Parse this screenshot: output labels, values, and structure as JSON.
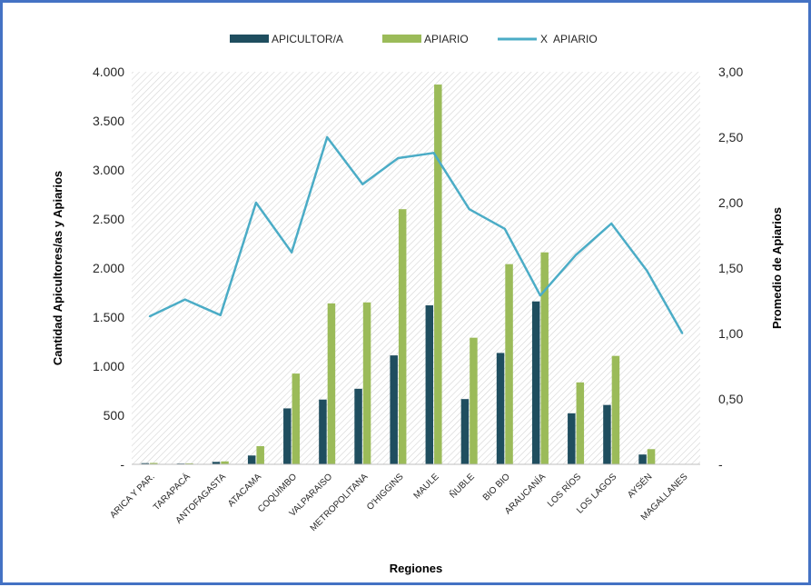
{
  "chart_data": {
    "type": "bar",
    "title": "",
    "xlabel": "Regiones",
    "ylabel": "Cantidad Apicultores/as y Apiarios",
    "y2label": "Promedio de Apiarios",
    "ylim": [
      0,
      4000
    ],
    "y2lim": [
      0,
      3
    ],
    "y_ticks": [
      "-",
      "500",
      "1.000",
      "1.500",
      "2.000",
      "2.500",
      "3.000",
      "3.500",
      "4.000"
    ],
    "y2_ticks": [
      "-",
      "0,50",
      "1,00",
      "1,50",
      "2,00",
      "2,50",
      "3,00"
    ],
    "grid": "hatched",
    "legend_position": "top",
    "categories": [
      "ARICA Y PAR.",
      "TARAPACÁ",
      "ANTOFAGASTA",
      "ATACAMA",
      "COQUIMBO",
      "VALPARAISO",
      "METROPOLITANA",
      "O'HIGGINS",
      "MAULE",
      "ÑUBLE",
      "BIO BIO",
      "ARAUCANÍA",
      "LOS RÍOS",
      "LOS LAGOS",
      "AYSÉN",
      "MAGALLANES"
    ],
    "series": [
      {
        "name": "APICULTOR/A",
        "type": "bar",
        "axis": "left",
        "color": "#1F4E5F",
        "values": [
          12,
          8,
          25,
          90,
          570,
          660,
          770,
          1110,
          1620,
          665,
          1135,
          1660,
          520,
          605,
          100,
          4
        ]
      },
      {
        "name": "APIARIO",
        "type": "bar",
        "axis": "left",
        "color": "#9BBB59",
        "values": [
          14,
          10,
          30,
          185,
          925,
          1640,
          1650,
          2600,
          3870,
          1290,
          2040,
          2160,
          835,
          1105,
          155,
          4
        ]
      },
      {
        "name": "X  APIARIO",
        "type": "line",
        "axis": "right",
        "color": "#4BACC6",
        "values": [
          1.13,
          1.26,
          1.14,
          2.0,
          1.62,
          2.5,
          2.14,
          2.34,
          2.38,
          1.95,
          1.8,
          1.29,
          1.6,
          1.84,
          1.48,
          1.0
        ]
      }
    ]
  }
}
